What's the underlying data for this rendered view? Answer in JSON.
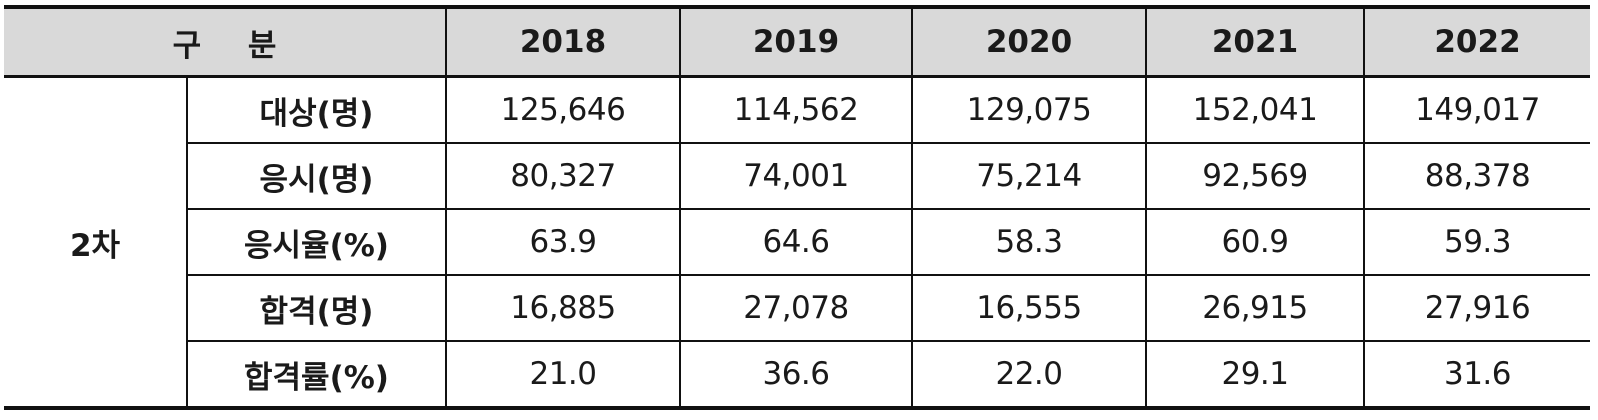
{
  "table": {
    "header": {
      "label": "구 분",
      "years": [
        "2018",
        "2019",
        "2020",
        "2021",
        "2022"
      ]
    },
    "group": "2차",
    "rows": [
      {
        "label": "대상(명)",
        "values": [
          "125,646",
          "114,562",
          "129,075",
          "152,041",
          "149,017"
        ]
      },
      {
        "label": "응시(명)",
        "values": [
          "80,327",
          "74,001",
          "75,214",
          "92,569",
          "88,378"
        ]
      },
      {
        "label": "응시율(%)",
        "values": [
          "63.9",
          "64.6",
          "58.3",
          "60.9",
          "59.3"
        ]
      },
      {
        "label": "합격(명)",
        "values": [
          "16,885",
          "27,078",
          "16,555",
          "26,915",
          "27,916"
        ]
      },
      {
        "label": "합격률(%)",
        "values": [
          "21.0",
          "36.6",
          "22.0",
          "29.1",
          "31.6"
        ]
      }
    ]
  },
  "colors": {
    "header_bg": "#d9d9d9",
    "border": "#111111",
    "text": "#1a1a1a"
  }
}
